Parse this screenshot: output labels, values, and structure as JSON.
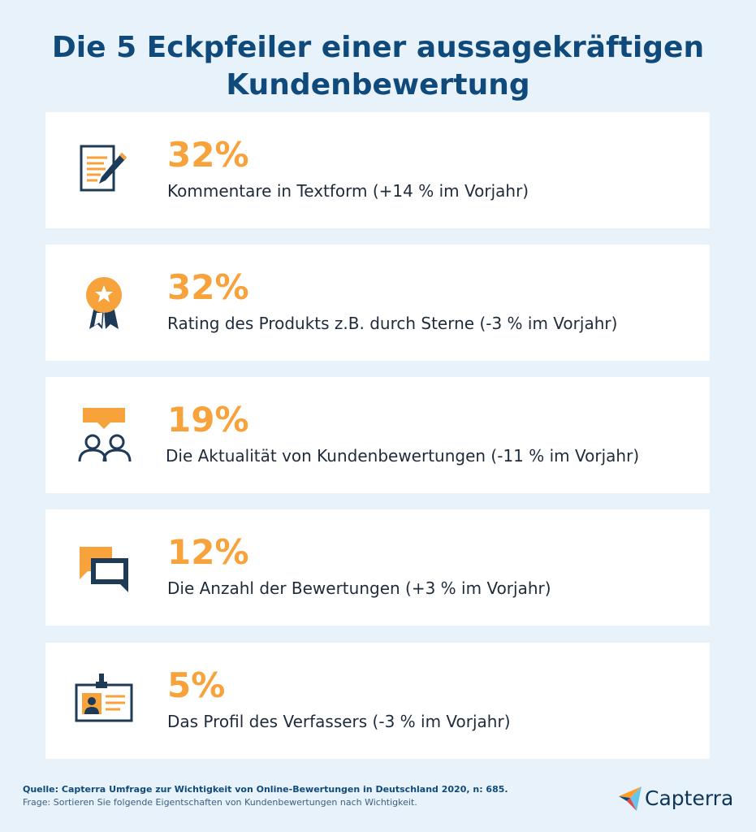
{
  "title": {
    "line1": "Die 5 Eckpfeiler einer aussagekräftigen",
    "line2": "Kundenbewertung"
  },
  "items": [
    {
      "percent": "32%",
      "label": "Kommentare in Textform (+14 % im Vorjahr)",
      "icon": "document-pen-icon"
    },
    {
      "percent": "32%",
      "label": "Rating des Produkts z.B. durch Sterne (-3 % im Vorjahr)",
      "icon": "award-ribbon-icon"
    },
    {
      "percent": "19%",
      "label": "Die Aktualität von Kundenbewertungen (-11 % im Vorjahr)",
      "icon": "people-chat-icon"
    },
    {
      "percent": "12%",
      "label": "Die Anzahl der Bewertungen (+3 % im Vorjahr)",
      "icon": "chat-bubbles-icon"
    },
    {
      "percent": "5%",
      "label": "Das Profil des Verfassers (-3 % im Vorjahr)",
      "icon": "id-badge-icon"
    }
  ],
  "footer": {
    "source": "Quelle: Capterra Umfrage zur Wichtigkeit von Online-Bewertungen in Deutschland 2020, n: 685.",
    "question": "Frage: Sortieren Sie folgende Eigentschaften von Kundenbewertungen nach Wichtigkeit.",
    "brand": "Capterra"
  },
  "colors": {
    "background": "#e7f2fb",
    "title": "#0f4a7a",
    "accent": "#f7a23b",
    "dark": "#1d3a57"
  }
}
